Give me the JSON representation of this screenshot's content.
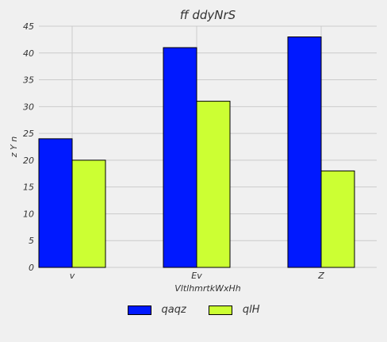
{
  "chart_data": {
    "type": "bar",
    "title": "ff ddyNrS",
    "xlabel": "VltlhmrtkWxHh",
    "ylabel": "z Y n",
    "categories": [
      "v",
      "Ev",
      "Z"
    ],
    "series": [
      {
        "name": "qaqz",
        "values": [
          24,
          41,
          43
        ],
        "color": "#0019ff"
      },
      {
        "name": "qlH",
        "values": [
          20,
          31,
          18
        ],
        "color": "#ccff33"
      }
    ],
    "ylim": [
      0,
      45
    ],
    "yticks": [
      0,
      5,
      10,
      15,
      20,
      25,
      30,
      35,
      40,
      45
    ],
    "grid": true,
    "legend_position": "bottom-center"
  }
}
